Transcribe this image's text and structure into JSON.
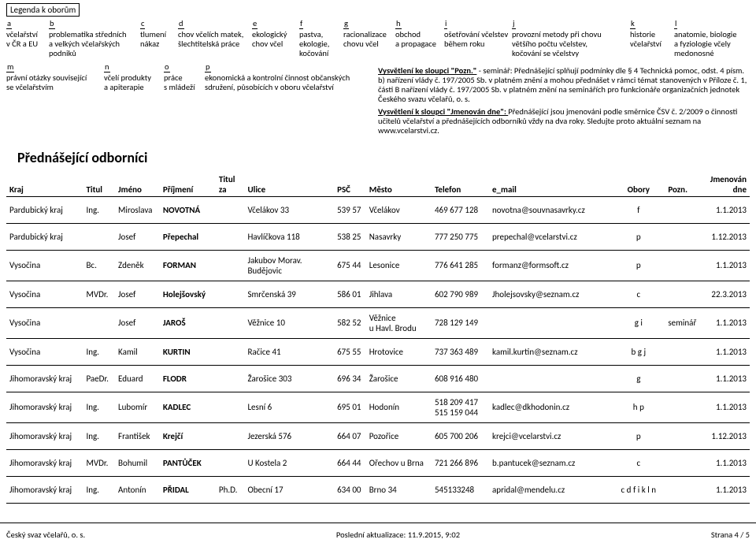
{
  "legend": {
    "title": "Legenda k oborům",
    "row1": [
      {
        "code": "a",
        "text": "včelařství\nv ČR a EU"
      },
      {
        "code": "b",
        "text": "problematika středních\na velkých včelařských\npodniků"
      },
      {
        "code": "c",
        "text": "tlumení\nnákaz"
      },
      {
        "code": "d",
        "text": "chov včelích matek,\nšlechtitelská práce"
      },
      {
        "code": "e",
        "text": "ekologický\nchov včel"
      },
      {
        "code": "f",
        "text": "pastva,\nekologie,\nkočování"
      },
      {
        "code": "g",
        "text": "racionalizace\nchovu včel"
      },
      {
        "code": "h",
        "text": "obchod\na propagace"
      },
      {
        "code": "i",
        "text": "ošetřování včelstev\nběhem roku"
      },
      {
        "code": "j",
        "text": "provozní metody při chovu\nvětšího počtu včelstev,\nkočování se včelstvy"
      },
      {
        "code": "k",
        "text": "historie\nvčelařství"
      },
      {
        "code": "l",
        "text": "anatomie, biologie\na fyziologie  včely medonosné"
      }
    ],
    "row2": [
      {
        "code": "m",
        "text": "právní otázky související\nse včelařstvím"
      },
      {
        "code": "n",
        "text": "včelí produkty\na apiterapie"
      },
      {
        "code": "o",
        "text": "práce\ns mládeží"
      },
      {
        "code": "p",
        "text": "ekonomická a kontrolní činnost občanských\nsdružení, působících v oboru včelařství"
      }
    ],
    "explain1_label": "Vysvětlení ke sloupci \"Pozn.\"",
    "explain1": " - seminář: Přednášející splňují podmínky dle § 4 Technická pomoc, odst. 4 písm. b) nařízení vlády č. 197/2005 Sb. v platném znění a mohou přednášet v rámci témat stanovených v Příloze č. 1, části B nařízení vlády č. 197/2005 Sb. v platném znění na seminářích pro funkcionáře organizačních jednotek Českého svazu včelařů, o. s.",
    "explain2_label": "Vysvětlení k sloupci \"Jmenován dne\": ",
    "explain2": "Přednášející jsou jmenováni podle směrnice ČSV č. 2/2009 o činnosti učitelů včelařství a přednášejících odborníků vždy na dva roky. Sledujte proto aktuální seznam na www.vcelarstvi.cz."
  },
  "section_title": "Přednášející odborníci",
  "headers": {
    "kraj": "Kraj",
    "titul": "Titul",
    "jmeno": "Jméno",
    "prijmeni": "Příjmení",
    "titulza": "Titul za",
    "ulice": "Ulice",
    "psc": "PSČ",
    "mesto": "Město",
    "telefon": "Telefon",
    "email": "e_mail",
    "obory": "Obory",
    "pozn": "Pozn.",
    "dne": "Jmenován dne"
  },
  "rows": [
    {
      "kraj": "Pardubický kraj",
      "titul": "Ing.",
      "jmeno": "Miroslava",
      "prijmeni": "NOVOTNÁ",
      "titulza": "",
      "ulice": "Včelákov 33",
      "psc": "539 57",
      "mesto": "Včelákov",
      "tel": "469 677 128",
      "email": "novotna@souvnasavrky.cz",
      "obory": "f",
      "pozn": "",
      "dne": "1.1.2013"
    },
    {
      "kraj": "Pardubický kraj",
      "titul": "",
      "jmeno": "Josef",
      "prijmeni": "Přepechal",
      "titulza": "",
      "ulice": "Havlíčkova 118",
      "psc": "538 25",
      "mesto": "Nasavrky",
      "tel": "777 250 775",
      "email": "prepechal@vcelarstvi.cz",
      "obory": "p",
      "pozn": "",
      "dne": "1.12.2013"
    },
    {
      "kraj": "Vysočina",
      "titul": "Bc.",
      "jmeno": "Zdeněk",
      "prijmeni": "FORMAN",
      "titulza": "",
      "ulice": "Jakubov Morav. Budějovic",
      "psc": "675 44",
      "mesto": "Lesonice",
      "tel": "776 641 285",
      "email": "formanz@formsoft.cz",
      "obory": "p",
      "pozn": "",
      "dne": "1.1.2013"
    },
    {
      "kraj": "Vysočina",
      "titul": "MVDr.",
      "jmeno": "Josef",
      "prijmeni": "Holejšovský",
      "titulza": "",
      "ulice": "Smrčenská 39",
      "psc": "586 01",
      "mesto": "Jihlava",
      "tel": "602 790 989",
      "email": "Jholejsovsky@seznam.cz",
      "obory": "c",
      "pozn": "",
      "dne": "22.3.2013"
    },
    {
      "kraj": "Vysočina",
      "titul": "",
      "jmeno": "Josef",
      "prijmeni": "JAROŠ",
      "titulza": "",
      "ulice": "Věžnice 10",
      "psc": "582 52",
      "mesto": "Věžnice\nu Havl. Brodu",
      "tel": "728 129 149",
      "email": "",
      "obory": "g i",
      "pozn": "seminář",
      "dne": "1.1.2013"
    },
    {
      "kraj": "Vysočina",
      "titul": "Ing.",
      "jmeno": "Kamil",
      "prijmeni": "KURTIN",
      "titulza": "",
      "ulice": "Račice 41",
      "psc": "675 55",
      "mesto": "Hrotovice",
      "tel": "737 363 489",
      "email": "kamil.kurtin@seznam.cz",
      "obory": "b g j",
      "pozn": "",
      "dne": "1.1.2013"
    },
    {
      "kraj": "Jihomoravský kraj",
      "titul": "PaeDr.",
      "jmeno": "Eduard",
      "prijmeni": "FLODR",
      "titulza": "",
      "ulice": "Žarošice 303",
      "psc": "696 34",
      "mesto": "Žarošice",
      "tel": "608 916 480",
      "email": "",
      "obory": "g",
      "pozn": "",
      "dne": "1.1.2013"
    },
    {
      "kraj": "Jihomoravský kraj",
      "titul": "Ing.",
      "jmeno": "Lubomír",
      "prijmeni": "KADLEC",
      "titulza": "",
      "ulice": "Lesní 6",
      "psc": "695 01",
      "mesto": "Hodonín",
      "tel": "518 209 417\n515 159 044",
      "email": "kadlec@dkhodonin.cz",
      "obory": "h p",
      "pozn": "",
      "dne": "1.1.2013"
    },
    {
      "kraj": "Jihomoravský kraj",
      "titul": "Ing.",
      "jmeno": "František",
      "prijmeni": "Krejčí",
      "titulza": "",
      "ulice": "Jezerská 576",
      "psc": "664 07",
      "mesto": "Pozořice",
      "tel": "605 700 206",
      "email": "krejci@vcelarstvi.cz",
      "obory": "p",
      "pozn": "",
      "dne": "1.12.2013"
    },
    {
      "kraj": "Jihomoravský kraj",
      "titul": "MVDr.",
      "jmeno": "Bohumil",
      "prijmeni": "PANTŮČEK",
      "titulza": "",
      "ulice": "U Kostela 2",
      "psc": "664 44",
      "mesto": "Ořechov u Brna",
      "tel": "721 266 896",
      "email": "b.pantucek@seznam.cz",
      "obory": "c",
      "pozn": "",
      "dne": "1.1.2013"
    },
    {
      "kraj": "Jihomoravský kraj",
      "titul": "Ing.",
      "jmeno": "Antonín",
      "prijmeni": "PŘIDAL",
      "titulza": "Ph.D.",
      "ulice": "Obecní 17",
      "psc": "634 00",
      "mesto": "Brno 34",
      "tel": "545133248",
      "email": "apridal@mendelu.cz",
      "obory": "c d f i k l n",
      "pozn": "",
      "dne": "1.1.2013"
    }
  ],
  "footer": {
    "left": "Český svaz včelařů, o. s.",
    "center": "Poslední aktualizace: 11.9.2015, 9:02",
    "right": "Strana  4 / 5"
  }
}
